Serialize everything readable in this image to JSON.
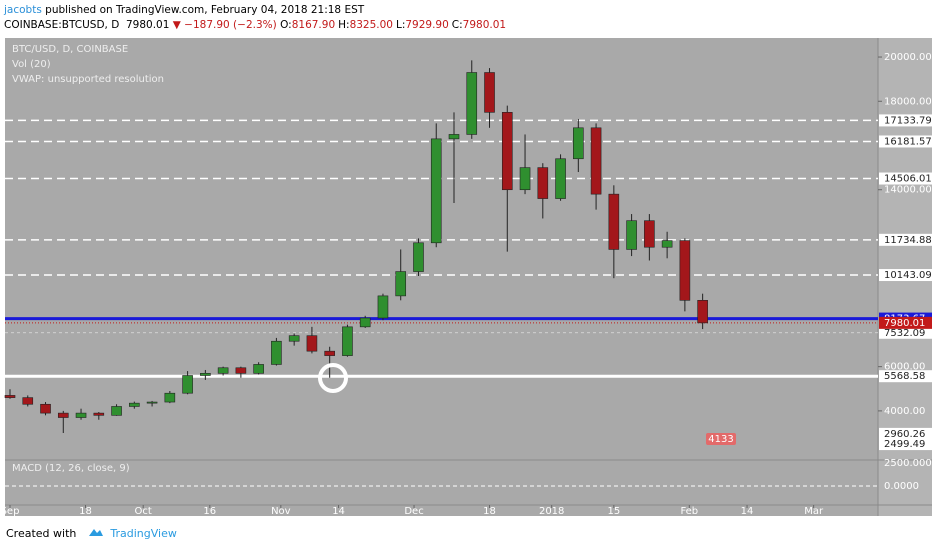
{
  "header": {
    "author": "jacobts",
    "published": "published on TradingView.com, February 04, 2018 21:18 EST",
    "symbol": "COINBASE:BTCUSD, D",
    "quote": "7980.01",
    "change": "▼ −187.90 (−2.3%)",
    "ohlc": [
      {
        "key": "O:",
        "val": "8167.90"
      },
      {
        "key": "H:",
        "val": "8325.00"
      },
      {
        "key": "L:",
        "val": "7929.90"
      },
      {
        "key": "C:",
        "val": "7980.01"
      }
    ]
  },
  "legend": [
    "BTC/USD, D, COINBASE",
    "Vol (20)",
    "VWAP: unsupported resolution"
  ],
  "macd": {
    "title": "MACD (12, 26, close, 9)",
    "ticks": [
      "2500.0000",
      "0.0000"
    ]
  },
  "volume_badge": "4133",
  "footer": {
    "text": "Created with",
    "brand": "TradingView"
  },
  "chart_data": {
    "type": "candlestick",
    "x": [
      "2017-09-01",
      "2017-09-05",
      "2017-09-09",
      "2017-09-13",
      "2017-09-17",
      "2017-09-21",
      "2017-09-25",
      "2017-09-29",
      "2017-10-03",
      "2017-10-07",
      "2017-10-11",
      "2017-10-15",
      "2017-10-19",
      "2017-10-23",
      "2017-10-27",
      "2017-10-31",
      "2017-11-04",
      "2017-11-08",
      "2017-11-12",
      "2017-11-16",
      "2017-11-20",
      "2017-11-24",
      "2017-11-28",
      "2017-12-02",
      "2017-12-06",
      "2017-12-10",
      "2017-12-14",
      "2017-12-18",
      "2017-12-22",
      "2017-12-26",
      "2017-12-30",
      "2018-01-03",
      "2018-01-07",
      "2018-01-11",
      "2018-01-15",
      "2018-01-19",
      "2018-01-23",
      "2018-01-27",
      "2018-01-31",
      "2018-02-04"
    ],
    "open": [
      4700,
      4600,
      4300,
      3900,
      3700,
      3900,
      3800,
      4200,
      4350,
      4400,
      4800,
      5600,
      5700,
      5950,
      5700,
      6100,
      7150,
      7400,
      6700,
      6500,
      7800,
      8200,
      9200,
      10300,
      11600,
      16300,
      16500,
      19300,
      17500,
      14000,
      15000,
      13600,
      15400,
      16800,
      13800,
      11300,
      12600,
      11400,
      11700,
      9000
    ],
    "high": [
      4980,
      4700,
      4400,
      4000,
      4100,
      3950,
      4300,
      4420,
      4450,
      4900,
      5800,
      5850,
      6000,
      6000,
      6200,
      7300,
      7500,
      7800,
      6900,
      7900,
      8300,
      9300,
      11300,
      11800,
      17000,
      17500,
      19850,
      19500,
      17800,
      16500,
      15200,
      15600,
      17200,
      17000,
      14200,
      12900,
      12900,
      12100,
      11800,
      9300
    ],
    "low": [
      4550,
      4200,
      3800,
      3000,
      3600,
      3600,
      3780,
      4100,
      4200,
      4350,
      4750,
      5400,
      5600,
      5500,
      5650,
      6050,
      6950,
      6600,
      5500,
      6450,
      7750,
      8100,
      9000,
      10100,
      11400,
      13400,
      16300,
      16800,
      11200,
      13800,
      12700,
      13500,
      14800,
      13100,
      10000,
      11000,
      10800,
      10900,
      8500,
      7700
    ],
    "close": [
      4600,
      4300,
      3900,
      3700,
      3900,
      3800,
      4200,
      4350,
      4400,
      4800,
      5600,
      5700,
      5950,
      5700,
      6100,
      7150,
      7400,
      6700,
      6500,
      7800,
      8200,
      9200,
      10300,
      11600,
      16300,
      16500,
      19300,
      17500,
      14000,
      15000,
      13600,
      15400,
      16800,
      13800,
      11300,
      12600,
      11400,
      11700,
      9000,
      7980.01
    ],
    "up_color": "#2f8f2f",
    "down_color": "#a3171b",
    "ylim": [
      1870,
      20770
    ],
    "yticks": [
      {
        "value": 20000,
        "label": "20000.00"
      },
      {
        "value": 18000,
        "label": "18000.00"
      },
      {
        "value": 14000,
        "label": "14000.00"
      },
      {
        "value": 6000,
        "label": "6000.00"
      },
      {
        "value": 4000,
        "label": "4000.00"
      }
    ],
    "xticks": [
      {
        "value": "2017-09-01",
        "label": "Sep"
      },
      {
        "value": "2017-09-18",
        "label": "18"
      },
      {
        "value": "2017-10-01",
        "label": "Oct"
      },
      {
        "value": "2017-10-16",
        "label": "16"
      },
      {
        "value": "2017-11-01",
        "label": "Nov"
      },
      {
        "value": "2017-11-14",
        "label": "14"
      },
      {
        "value": "2017-12-01",
        "label": "Dec"
      },
      {
        "value": "2017-12-18",
        "label": "18"
      },
      {
        "value": "2018-01-01",
        "label": "2018"
      },
      {
        "value": "2018-01-15",
        "label": "15"
      },
      {
        "value": "2018-02-01",
        "label": "Feb"
      },
      {
        "value": "2018-02-14",
        "label": "14"
      },
      {
        "value": "2018-03-01",
        "label": "Mar"
      }
    ],
    "levels": [
      {
        "value": 17133.79,
        "style": "dashed",
        "color": "#ffffff"
      },
      {
        "value": 16181.57,
        "style": "dashed",
        "color": "#ffffff"
      },
      {
        "value": 14506.01,
        "style": "dashed",
        "color": "#ffffff"
      },
      {
        "value": 11734.88,
        "style": "dashed",
        "color": "#ffffff"
      },
      {
        "value": 10143.09,
        "style": "dashed",
        "color": "#ffffff"
      },
      {
        "value": 7532.09,
        "style": "thin",
        "color": "#dddddd"
      },
      {
        "value": 5568.58,
        "style": "solid",
        "color": "#ffffff"
      },
      {
        "value": 8173.67,
        "style": "solid",
        "color": "#1a1ad8"
      },
      {
        "value": 7980.01,
        "style": "price",
        "color": "#c21a1a"
      },
      {
        "value": 2960.26,
        "style": "label",
        "color": "#ffffff"
      },
      {
        "value": 2499.49,
        "style": "label",
        "color": "#ffffff"
      }
    ]
  }
}
